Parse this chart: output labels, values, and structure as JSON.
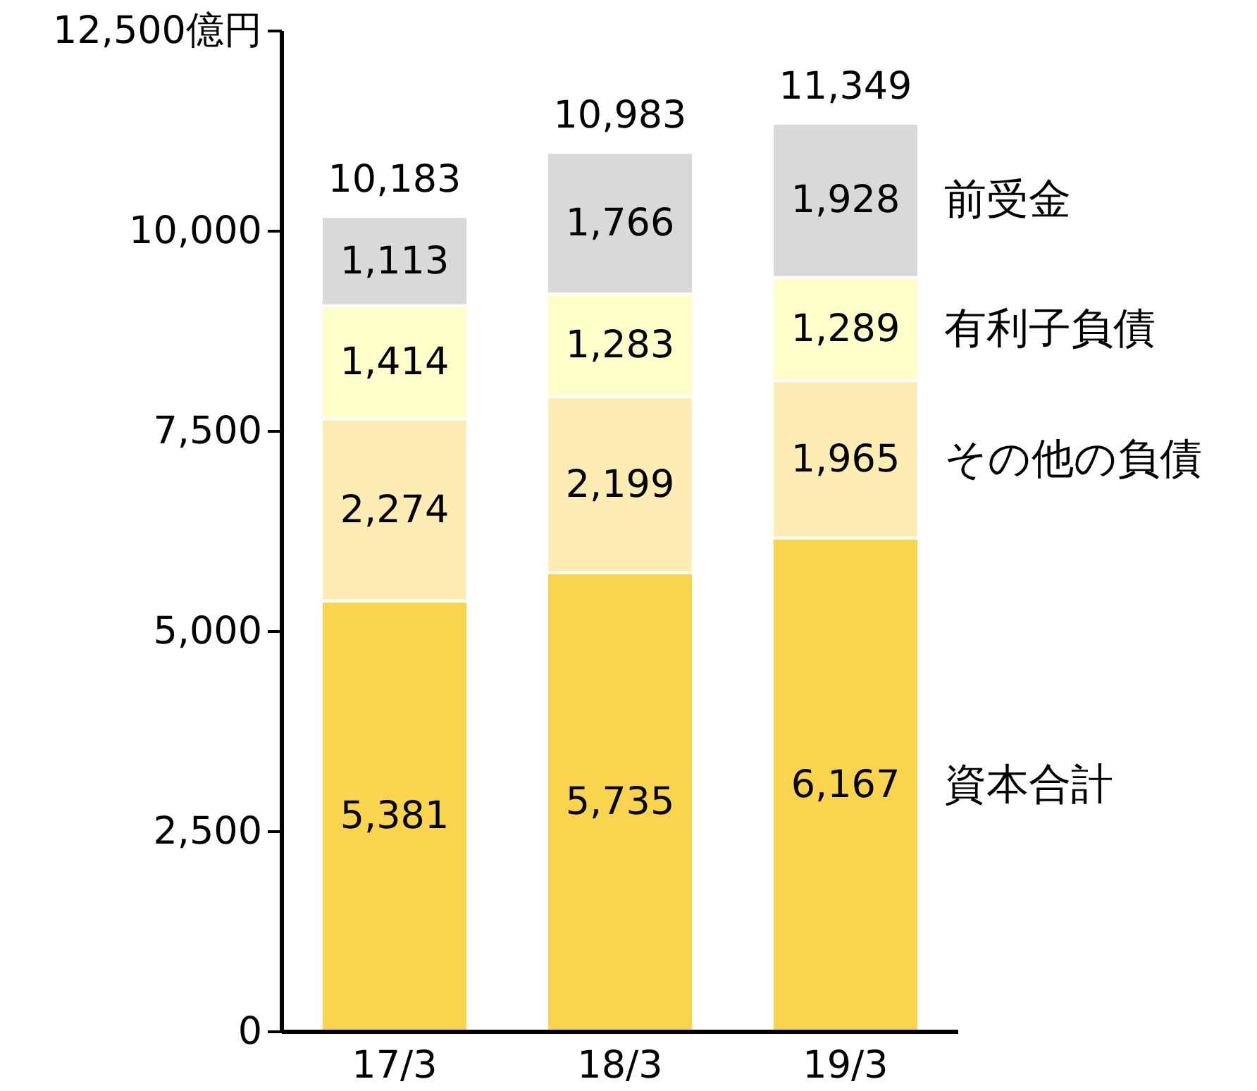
{
  "chart_data": {
    "type": "bar",
    "stacked": true,
    "categories": [
      "17/3",
      "18/3",
      "19/3"
    ],
    "ylim": [
      0,
      12500
    ],
    "yticks": [
      0,
      {
        "value": 2500,
        "label": "2,500"
      },
      {
        "value": 5000,
        "label": "5,000"
      },
      {
        "value": 7500,
        "label": "7,500"
      },
      {
        "value": 10000,
        "label": "10,000"
      },
      {
        "value": 12500,
        "label": "12,500億円"
      }
    ],
    "series": [
      {
        "name": "資本合計",
        "color": "#fad44e",
        "values": [
          5381,
          5735,
          6167
        ],
        "value_labels": [
          "5,381",
          "5,735",
          "6,167"
        ]
      },
      {
        "name": "その他の負債",
        "color": "#fdedb5",
        "values": [
          2274,
          2199,
          1965
        ],
        "value_labels": [
          "2,274",
          "2,199",
          "1,965"
        ]
      },
      {
        "name": "有利子負債",
        "color": "#ffffcc",
        "values": [
          1414,
          1283,
          1289
        ],
        "value_labels": [
          "1,414",
          "1,283",
          "1,289"
        ]
      },
      {
        "name": "前受金",
        "color": "#d9d9d9",
        "values": [
          1113,
          1766,
          1928
        ],
        "value_labels": [
          "1,113",
          "1,766",
          "1,928"
        ]
      }
    ],
    "totals": [
      "10,183",
      "10,983",
      "11,349"
    ],
    "grid": false
  }
}
